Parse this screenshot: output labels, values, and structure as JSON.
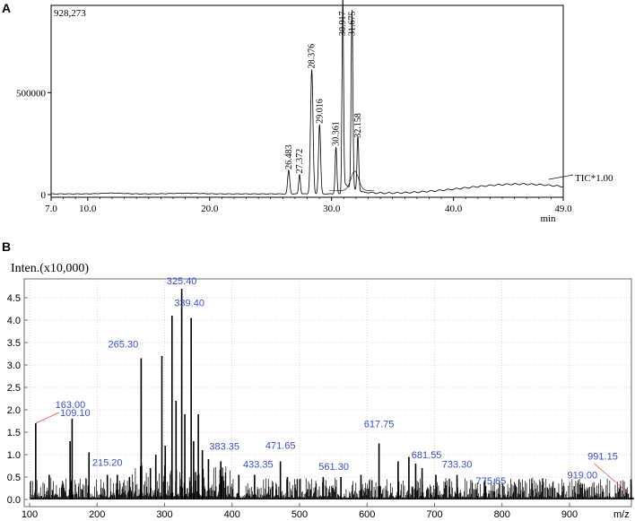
{
  "panels": {
    "a_label": "A",
    "b_label": "B"
  },
  "chart_data": [
    {
      "type": "line",
      "panel": "A",
      "corner_label": "928,273",
      "trace_label": "TIC*1.00",
      "xlabel": "min",
      "xlim": [
        7.0,
        49.0
      ],
      "ylim": [
        0,
        928273
      ],
      "x_ticks": [
        "7.0",
        "10.0",
        "20.0",
        "30.0",
        "40.0",
        "49.0"
      ],
      "x_tick_values": [
        7.0,
        10.0,
        20.0,
        30.0,
        40.0,
        49.0
      ],
      "y_ticks": [
        "0",
        "500000"
      ],
      "y_tick_values": [
        0,
        500000
      ],
      "peaks": [
        {
          "label": "26.483",
          "x": 26.483,
          "y": 115000
        },
        {
          "label": "27.372",
          "x": 27.372,
          "y": 95000
        },
        {
          "label": "28.376",
          "x": 28.376,
          "y": 610000
        },
        {
          "label": "29.016",
          "x": 29.016,
          "y": 340000
        },
        {
          "label": "30.361",
          "x": 30.361,
          "y": 230000
        },
        {
          "label": "30.917",
          "x": 30.917,
          "y": 928273
        },
        {
          "label": "31.675",
          "x": 31.675,
          "y": 880000
        },
        {
          "label": "32.158",
          "x": 32.158,
          "y": 270000
        }
      ]
    },
    {
      "type": "bar",
      "panel": "B",
      "ylabel": "Inten.(x10,000)",
      "xlabel": "m/z",
      "xlim": [
        100,
        1000
      ],
      "ylim": [
        0,
        4.8
      ],
      "x_ticks": [
        "100",
        "200",
        "300",
        "400",
        "500",
        "600",
        "700",
        "800",
        "900"
      ],
      "x_tick_values": [
        100,
        200,
        300,
        400,
        500,
        600,
        700,
        800,
        900
      ],
      "y_ticks": [
        "0.0",
        "0.5",
        "1.0",
        "1.5",
        "2.0",
        "2.5",
        "3.0",
        "3.5",
        "4.0",
        "4.5"
      ],
      "y_tick_values": [
        0.0,
        0.5,
        1.0,
        1.5,
        2.0,
        2.5,
        3.0,
        3.5,
        4.0,
        4.5
      ],
      "labeled_peaks": [
        {
          "label": "109.10",
          "x": 109.1,
          "y": 1.7
        },
        {
          "label": "163.00",
          "x": 163.0,
          "y": 1.8
        },
        {
          "label": "215.20",
          "x": 215.2,
          "y": 0.55
        },
        {
          "label": "265.30",
          "x": 265.3,
          "y": 3.15
        },
        {
          "label": "325.40",
          "x": 325.4,
          "y": 4.7
        },
        {
          "label": "339.40",
          "x": 339.4,
          "y": 4.05
        },
        {
          "label": "383.35",
          "x": 383.35,
          "y": 0.85
        },
        {
          "label": "433.35",
          "x": 433.35,
          "y": 0.55
        },
        {
          "label": "471.65",
          "x": 471.65,
          "y": 0.85
        },
        {
          "label": "561.30",
          "x": 561.3,
          "y": 0.5
        },
        {
          "label": "617.75",
          "x": 617.75,
          "y": 1.25
        },
        {
          "label": "681.55",
          "x": 681.55,
          "y": 0.7
        },
        {
          "label": "733.30",
          "x": 733.3,
          "y": 0.55
        },
        {
          "label": "775.65",
          "x": 775.65,
          "y": 0.3
        },
        {
          "label": "919.00",
          "x": 919.0,
          "y": 0.35
        },
        {
          "label": "991.15",
          "x": 991.15,
          "y": 0.45
        }
      ],
      "other_peaks": [
        {
          "x": 311,
          "y": 4.1
        },
        {
          "x": 296,
          "y": 3.2
        },
        {
          "x": 301,
          "y": 1.2
        },
        {
          "x": 317,
          "y": 2.2
        },
        {
          "x": 330,
          "y": 1.9
        },
        {
          "x": 343,
          "y": 1.3
        },
        {
          "x": 350,
          "y": 1.9
        },
        {
          "x": 356,
          "y": 1.1
        },
        {
          "x": 365,
          "y": 0.9
        },
        {
          "x": 188,
          "y": 1.05
        },
        {
          "x": 160,
          "y": 1.3
        },
        {
          "x": 287,
          "y": 1.0
        },
        {
          "x": 279,
          "y": 0.7
        },
        {
          "x": 646,
          "y": 0.85
        },
        {
          "x": 662,
          "y": 0.95
        },
        {
          "x": 672,
          "y": 0.8
        },
        {
          "x": 702,
          "y": 0.55
        },
        {
          "x": 591,
          "y": 0.55
        },
        {
          "x": 535,
          "y": 0.5
        },
        {
          "x": 482,
          "y": 0.5
        },
        {
          "x": 410,
          "y": 0.55
        },
        {
          "x": 230,
          "y": 0.55
        },
        {
          "x": 248,
          "y": 0.5
        },
        {
          "x": 129,
          "y": 0.55
        }
      ],
      "colors": {
        "peak_label": "#3a4fd0",
        "leader": "#e05050",
        "frame": "#6e6e6e"
      }
    }
  ]
}
